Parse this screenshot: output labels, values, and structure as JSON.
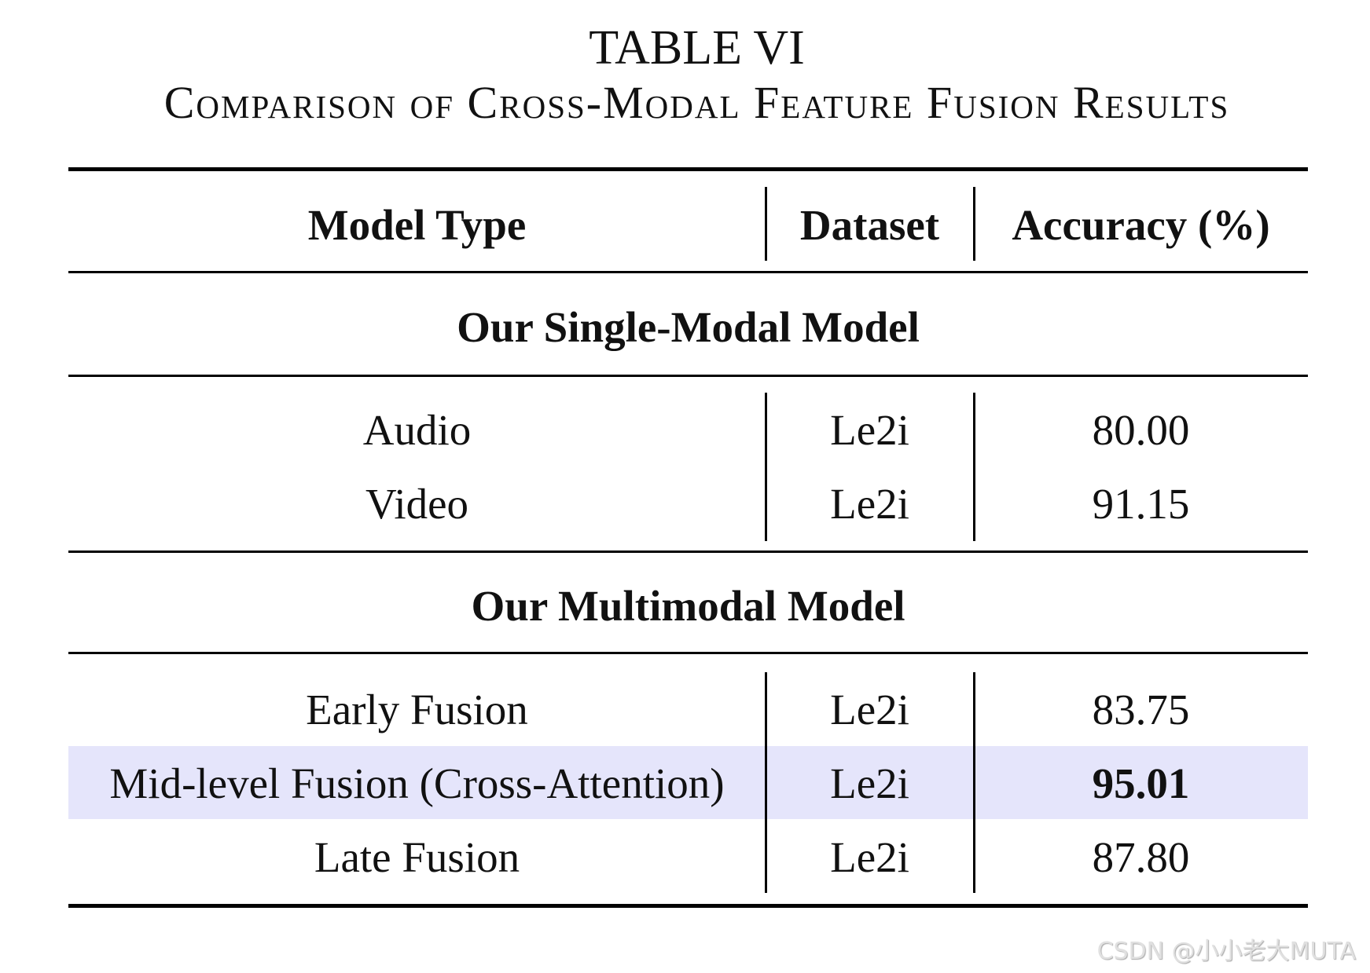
{
  "caption": {
    "label": "TABLE VI",
    "title": "Comparison of Cross-Modal Feature Fusion Results"
  },
  "table": {
    "headers": [
      "Model Type",
      "Dataset",
      "Accuracy (%)"
    ],
    "sections": [
      {
        "title": "Our Single-Modal Model",
        "rows": [
          {
            "model": "Audio",
            "dataset": "Le2i",
            "accuracy": "80.00"
          },
          {
            "model": "Video",
            "dataset": "Le2i",
            "accuracy": "91.15"
          }
        ]
      },
      {
        "title": "Our Multimodal Model",
        "rows": [
          {
            "model": "Early Fusion",
            "dataset": "Le2i",
            "accuracy": "83.75"
          },
          {
            "model": "Mid-level Fusion (Cross-Attention)",
            "dataset": "Le2i",
            "accuracy": "95.01",
            "highlighted": true,
            "bold_accuracy": true
          },
          {
            "model": "Late Fusion",
            "dataset": "Le2i",
            "accuracy": "87.80"
          }
        ]
      }
    ],
    "highlight_color": "#e5e5fb"
  },
  "watermark": "CSDN @小小老大MUTA"
}
